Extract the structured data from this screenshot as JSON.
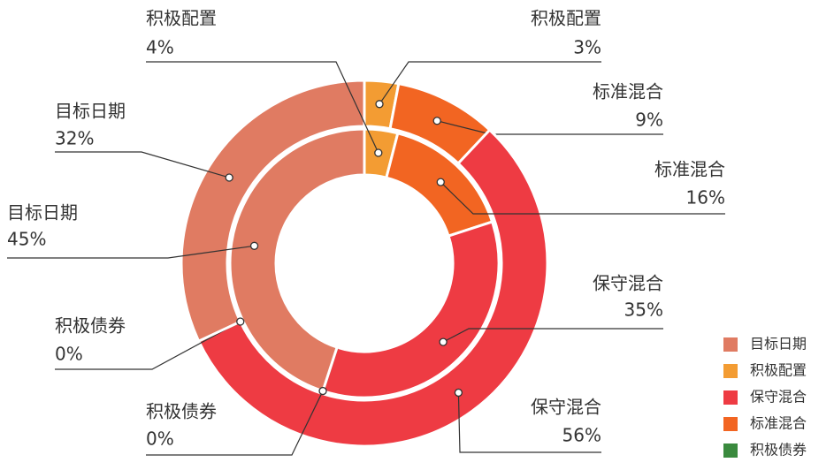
{
  "chart_data": {
    "type": "nested-donut",
    "categories": [
      "积极配置",
      "标准混合",
      "保守混合",
      "积极债券",
      "目标日期"
    ],
    "colors": [
      "#f39c33",
      "#f26522",
      "#ee3b43",
      "#3a8a3e",
      "#e07b62"
    ],
    "series": [
      {
        "values": [
          3,
          9,
          56,
          0,
          32
        ],
        "value_labels": [
          "3%",
          "9%",
          "56%",
          "0%",
          "32%"
        ]
      },
      {
        "values": [
          4,
          16,
          35,
          0,
          45
        ],
        "value_labels": [
          "4%",
          "16%",
          "35%",
          "0%",
          "45%"
        ]
      }
    ],
    "legend": [
      "目标日期",
      "积极配置",
      "保守混合",
      "标准混合",
      "积极债券"
    ]
  }
}
